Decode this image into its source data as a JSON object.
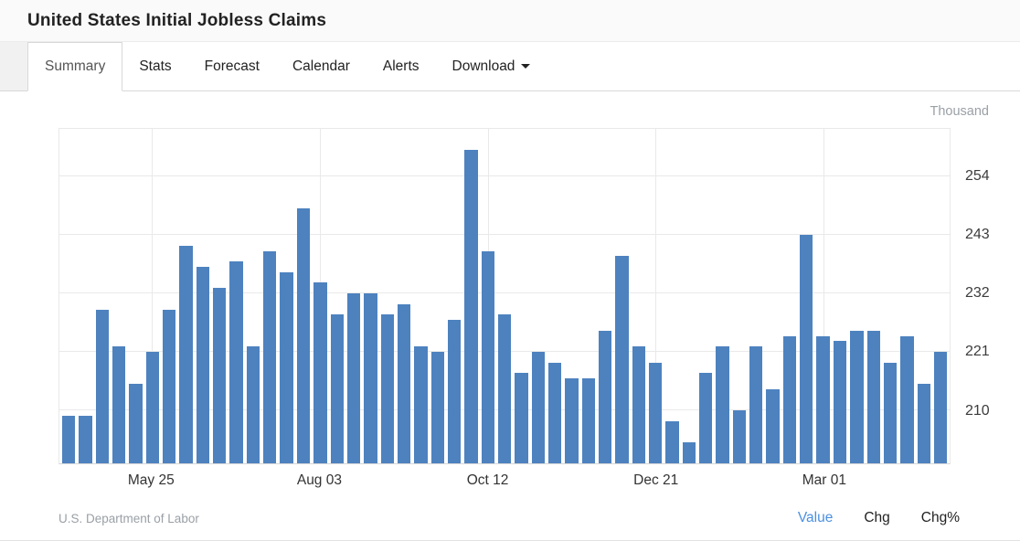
{
  "header": {
    "title": "United States Initial Jobless Claims"
  },
  "tabs": [
    {
      "label": "Summary",
      "active": true
    },
    {
      "label": "Stats",
      "active": false
    },
    {
      "label": "Forecast",
      "active": false
    },
    {
      "label": "Calendar",
      "active": false
    },
    {
      "label": "Alerts",
      "active": false
    },
    {
      "label": "Download",
      "active": false,
      "caret": true
    }
  ],
  "chart": {
    "unit_label": "Thousand",
    "bar_color": "#4d82bf",
    "grid_color": "#e9e9e9"
  },
  "chart_data": {
    "type": "bar",
    "title": "United States Initial Jobless Claims",
    "ylabel": "Thousand",
    "ylim": [
      200,
      263
    ],
    "y_ticks": [
      210,
      221,
      232,
      243,
      254
    ],
    "x_tick_labels": [
      "May 25",
      "Aug 03",
      "Oct 12",
      "Dec 21",
      "Mar 01"
    ],
    "x_tick_bar_indices": [
      5,
      15,
      25,
      35,
      45
    ],
    "values": [
      209,
      209,
      229,
      222,
      215,
      221,
      229,
      241,
      237,
      233,
      238,
      222,
      240,
      236,
      248,
      234,
      228,
      232,
      232,
      228,
      230,
      222,
      221,
      227,
      259,
      240,
      228,
      217,
      221,
      219,
      216,
      216,
      225,
      239,
      222,
      219,
      208,
      204,
      217,
      222,
      210,
      222,
      214,
      224,
      243,
      224,
      223,
      225,
      225,
      219,
      224,
      215,
      221
    ],
    "grid": true,
    "legend": false
  },
  "footer": {
    "source": "U.S. Department of Labor",
    "links": [
      {
        "label": "Value",
        "active": true
      },
      {
        "label": "Chg",
        "active": false
      },
      {
        "label": "Chg%",
        "active": false
      }
    ]
  }
}
